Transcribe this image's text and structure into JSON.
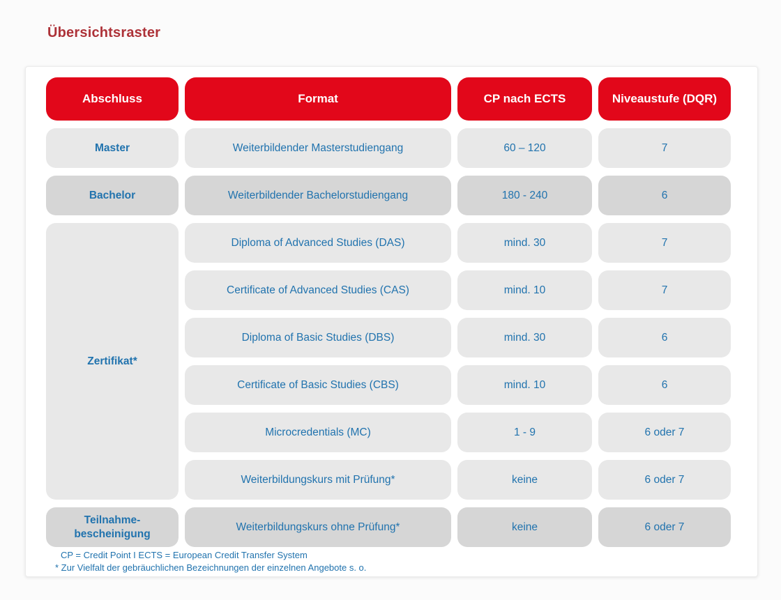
{
  "page": {
    "title": "Übersichtsraster",
    "accent_red": "#e2071a",
    "title_red": "#ad3238",
    "text_blue": "#2173ae",
    "cell_gray_light": "#e8e8e8",
    "cell_gray_dark": "#d6d6d6"
  },
  "table": {
    "headers": [
      "Abschluss",
      "Format",
      "CP nach ECTS",
      "Niveaustufe (DQR)"
    ],
    "groups": [
      {
        "abschluss": "Master",
        "rows": [
          {
            "format": "Weiterbildender Masterstudiengang",
            "cp": "60 – 120",
            "dqr": "7"
          }
        ]
      },
      {
        "abschluss": "Bachelor",
        "rows": [
          {
            "format": "Weiterbildender Bachelorstudiengang",
            "cp": "180 - 240",
            "dqr": "6"
          }
        ]
      },
      {
        "abschluss": "Zertifikat*",
        "rows": [
          {
            "format": "Diploma of Advanced Studies (DAS)",
            "cp": "mind. 30",
            "dqr": "7"
          },
          {
            "format": "Certificate of Advanced Studies (CAS)",
            "cp": "mind. 10",
            "dqr": "7"
          },
          {
            "format": "Diploma of Basic Studies (DBS)",
            "cp": "mind. 30",
            "dqr": "6"
          },
          {
            "format": "Certificate of Basic Studies (CBS)",
            "cp": "mind. 10",
            "dqr": "6"
          },
          {
            "format": "Microcredentials (MC)",
            "cp": "1 - 9",
            "dqr": "6 oder 7"
          },
          {
            "format": "Weiterbildungskurs mit Prüfung*",
            "cp": "keine",
            "dqr": "6 oder 7"
          }
        ]
      },
      {
        "abschluss": "Teilnahme-\nbescheinigung",
        "rows": [
          {
            "format": "Weiterbildungskurs ohne Prüfung*",
            "cp": "keine",
            "dqr": "6 oder 7"
          }
        ]
      }
    ],
    "footnotes": [
      "CP = Credit Point I ECTS = European Credit Transfer System",
      "* Zur Vielfalt der gebräuchlichen Bezeichnungen der einzelnen Angebote s. o."
    ]
  }
}
